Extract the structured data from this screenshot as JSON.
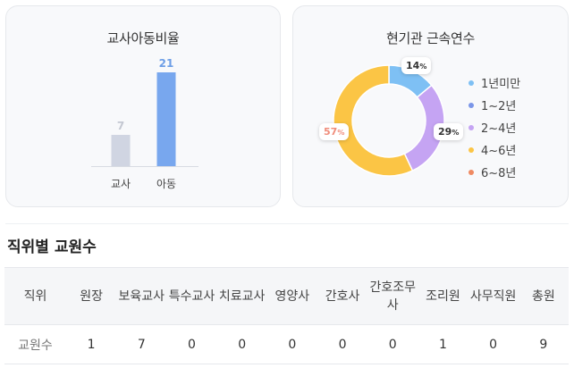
{
  "ratio_card": {
    "title": "교사아동비율"
  },
  "tenure_card": {
    "title": "현기관 근속연수",
    "legend": [
      {
        "label": "1년미만",
        "color": "#7ec0f4"
      },
      {
        "label": "1~2년",
        "color": "#7b96e8"
      },
      {
        "label": "2~4년",
        "color": "#c5a4f3"
      },
      {
        "label": "4~6년",
        "color": "#fbc545"
      },
      {
        "label": "6~8년",
        "color": "#ef8a62"
      }
    ]
  },
  "chart_data": [
    {
      "type": "bar",
      "title": "교사아동비율",
      "categories": [
        "교사",
        "아동"
      ],
      "values": [
        7,
        21
      ],
      "colors": [
        "#d0d5e2",
        "#78a7ee"
      ],
      "value_label_colors": [
        "#c4c8d2",
        "#6d9ee6"
      ],
      "ylim": [
        0,
        21
      ]
    },
    {
      "type": "pie",
      "title": "현기관 근속연수",
      "labels": [
        "1년미만",
        "1~2년",
        "2~4년",
        "4~6년",
        "6~8년"
      ],
      "values": [
        14,
        0,
        29,
        57,
        0
      ],
      "colors": [
        "#7ec0f4",
        "#7b96e8",
        "#c5a4f3",
        "#fbc545",
        "#ef8a62"
      ],
      "percent_labels": [
        {
          "text": "14",
          "color": "#333333"
        },
        {
          "text": "29",
          "color": "#333333"
        },
        {
          "text": "57",
          "color": "#f08c7a"
        }
      ],
      "percent_suffix": "%"
    }
  ],
  "staff_section": {
    "title": "직위별 교원수",
    "header_label": "직위",
    "row_label": "교원수",
    "columns": [
      {
        "label": "원장",
        "count": "1"
      },
      {
        "label": "보육교사",
        "count": "7"
      },
      {
        "label": "특수교사",
        "count": "0"
      },
      {
        "label": "치료교사",
        "count": "0"
      },
      {
        "label": "영양사",
        "count": "0"
      },
      {
        "label": "간호사",
        "count": "0"
      },
      {
        "label": "간호조무사",
        "count": "0"
      },
      {
        "label": "조리원",
        "count": "1"
      },
      {
        "label": "사무직원",
        "count": "0"
      },
      {
        "label": "총원",
        "count": "9"
      }
    ]
  }
}
